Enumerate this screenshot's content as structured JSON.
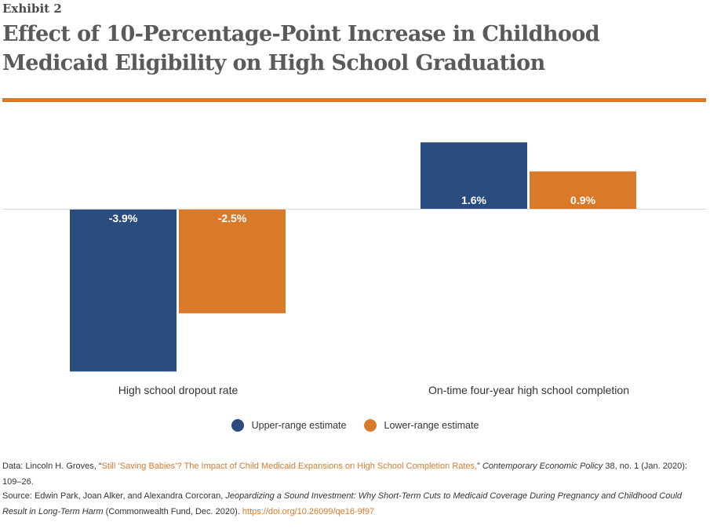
{
  "header": {
    "exhibit": "Exhibit 2",
    "title": "Effect of 10-Percentage-Point Increase in Childhood Medicaid Eligibility on High School Graduation"
  },
  "colors": {
    "upper": "#2b4c7e",
    "lower": "#d97a2b",
    "accent_rule": "#d97a2b"
  },
  "chart_data": {
    "type": "bar",
    "categories": [
      "High school dropout rate",
      "On-time four-year high school completion"
    ],
    "series": [
      {
        "name": "Upper-range estimate",
        "values": [
          -3.9,
          1.6
        ],
        "labels": [
          "-3.9%",
          "1.6%"
        ]
      },
      {
        "name": "Lower-range estimate",
        "values": [
          -2.5,
          0.9
        ],
        "labels": [
          "-2.5%",
          "0.9%"
        ]
      }
    ],
    "title": "Effect of 10-Percentage-Point Increase in Childhood Medicaid Eligibility on High School Graduation",
    "xlabel": "",
    "ylabel": "",
    "ylim": [
      -3.9,
      1.6
    ],
    "grid": false,
    "legend_position": "bottom-center"
  },
  "notes": {
    "data_prefix": "Data: Lincoln H. Groves, “",
    "data_link": "Still ‘Saving Babies’? The Impact of Child Medicaid Expansions on High School Completion Rates,",
    "data_mid": "” ",
    "data_journal": "Contemporary Economic Policy",
    "data_suffix": " 38, no. 1 (Jan. 2020): 109–26.",
    "source_prefix": "Source: Edwin Park, Joan Alker, and Alexandra Corcoran, ",
    "source_title": "Jeopardizing a Sound Investment: Why Short-Term Cuts to Medicaid Coverage During Pregnancy and Childhood Could Result in Long-Term Harm",
    "source_mid": " (Commonwealth Fund, Dec. 2020). ",
    "source_link": "https://doi.org/10.26099/qe16-9f97"
  }
}
